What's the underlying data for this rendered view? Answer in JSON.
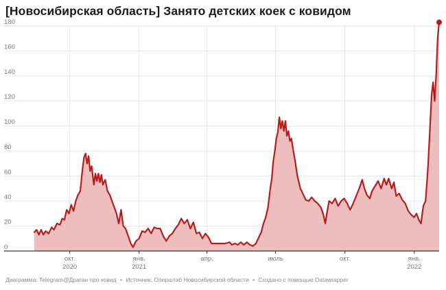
{
  "title": "[Новосибирская область] Занято детских коек с ковидом",
  "footer": {
    "chart_credit": "Диаграмма: Telegram@Драган про ковид",
    "source": "Источник: Оперштаб Новосибирской области",
    "tool": "Создано с помощью Datawrapper",
    "separator": "•"
  },
  "colors": {
    "line": "#b71c1c",
    "area": "#eebdbd",
    "grid": "#e6e6e6",
    "axis": "#333333",
    "tick_label": "#777777"
  },
  "chart_data": {
    "type": "area",
    "title": "[Новосибирская область] Занято детских коек с ковидом",
    "xlabel": "",
    "ylabel": "",
    "ylim": [
      0,
      180
    ],
    "xlim": [
      "2020-08-15",
      "2022-02-03"
    ],
    "grid": true,
    "legend": "none",
    "y_ticks": [
      0,
      20,
      40,
      60,
      80,
      100,
      120,
      140,
      160,
      180
    ],
    "x_ticks": [
      {
        "date": "2020-10-01",
        "label": "окт.",
        "year": "2020"
      },
      {
        "date": "2021-01-01",
        "label": "янв.",
        "year": "2021"
      },
      {
        "date": "2021-04-01",
        "label": "апр.",
        "year": ""
      },
      {
        "date": "2021-07-01",
        "label": "июль",
        "year": ""
      },
      {
        "date": "2021-10-01",
        "label": "окт.",
        "year": ""
      },
      {
        "date": "2022-01-01",
        "label": "янв.",
        "year": "2022"
      }
    ],
    "series": [
      {
        "values": [
          [
            "2020-08-15",
            15
          ],
          [
            "2020-08-18",
            17
          ],
          [
            "2020-08-21",
            13
          ],
          [
            "2020-08-24",
            17
          ],
          [
            "2020-08-27",
            13
          ],
          [
            "2020-08-30",
            16
          ],
          [
            "2020-09-03",
            14
          ],
          [
            "2020-09-07",
            19
          ],
          [
            "2020-09-10",
            17
          ],
          [
            "2020-09-14",
            22
          ],
          [
            "2020-09-18",
            21
          ],
          [
            "2020-09-21",
            26
          ],
          [
            "2020-09-24",
            25
          ],
          [
            "2020-09-27",
            33
          ],
          [
            "2020-09-30",
            30
          ],
          [
            "2020-10-03",
            37
          ],
          [
            "2020-10-06",
            32
          ],
          [
            "2020-10-09",
            40
          ],
          [
            "2020-10-12",
            45
          ],
          [
            "2020-10-15",
            48
          ],
          [
            "2020-10-18",
            66
          ],
          [
            "2020-10-20",
            75
          ],
          [
            "2020-10-22",
            78
          ],
          [
            "2020-10-24",
            70
          ],
          [
            "2020-10-26",
            76
          ],
          [
            "2020-10-28",
            64
          ],
          [
            "2020-10-30",
            68
          ],
          [
            "2020-11-02",
            53
          ],
          [
            "2020-11-04",
            62
          ],
          [
            "2020-11-06",
            56
          ],
          [
            "2020-11-08",
            62
          ],
          [
            "2020-11-10",
            55
          ],
          [
            "2020-11-12",
            61
          ],
          [
            "2020-11-14",
            53
          ],
          [
            "2020-11-17",
            57
          ],
          [
            "2020-11-20",
            48
          ],
          [
            "2020-11-23",
            45
          ],
          [
            "2020-11-26",
            40
          ],
          [
            "2020-11-29",
            35
          ],
          [
            "2020-12-02",
            30
          ],
          [
            "2020-12-05",
            22
          ],
          [
            "2020-12-08",
            33
          ],
          [
            "2020-12-11",
            20
          ],
          [
            "2020-12-14",
            18
          ],
          [
            "2020-12-17",
            13
          ],
          [
            "2020-12-21",
            6
          ],
          [
            "2020-12-24",
            3
          ],
          [
            "2020-12-28",
            8
          ],
          [
            "2021-01-01",
            10
          ],
          [
            "2021-01-05",
            16
          ],
          [
            "2021-01-09",
            15
          ],
          [
            "2021-01-13",
            18
          ],
          [
            "2021-01-17",
            14
          ],
          [
            "2021-01-21",
            19
          ],
          [
            "2021-01-25",
            18
          ],
          [
            "2021-01-29",
            18
          ],
          [
            "2021-02-02",
            12
          ],
          [
            "2021-02-06",
            8
          ],
          [
            "2021-02-10",
            12
          ],
          [
            "2021-02-14",
            14
          ],
          [
            "2021-02-18",
            18
          ],
          [
            "2021-02-22",
            21
          ],
          [
            "2021-02-26",
            26
          ],
          [
            "2021-03-02",
            22
          ],
          [
            "2021-03-06",
            25
          ],
          [
            "2021-03-10",
            18
          ],
          [
            "2021-03-14",
            23
          ],
          [
            "2021-03-18",
            14
          ],
          [
            "2021-03-22",
            15
          ],
          [
            "2021-03-26",
            10
          ],
          [
            "2021-03-30",
            14
          ],
          [
            "2021-04-03",
            11
          ],
          [
            "2021-04-07",
            6
          ],
          [
            "2021-04-15",
            6
          ],
          [
            "2021-04-25",
            6
          ],
          [
            "2021-05-01",
            7
          ],
          [
            "2021-05-04",
            5
          ],
          [
            "2021-05-08",
            6
          ],
          [
            "2021-05-12",
            5
          ],
          [
            "2021-05-16",
            7
          ],
          [
            "2021-05-20",
            5
          ],
          [
            "2021-05-24",
            7
          ],
          [
            "2021-05-28",
            5
          ],
          [
            "2021-06-01",
            4
          ],
          [
            "2021-06-05",
            6
          ],
          [
            "2021-06-08",
            10
          ],
          [
            "2021-06-12",
            15
          ],
          [
            "2021-06-15",
            22
          ],
          [
            "2021-06-18",
            27
          ],
          [
            "2021-06-21",
            35
          ],
          [
            "2021-06-24",
            50
          ],
          [
            "2021-06-26",
            58
          ],
          [
            "2021-06-28",
            72
          ],
          [
            "2021-06-30",
            80
          ],
          [
            "2021-07-02",
            90
          ],
          [
            "2021-07-04",
            95
          ],
          [
            "2021-07-06",
            107
          ],
          [
            "2021-07-08",
            98
          ],
          [
            "2021-07-10",
            104
          ],
          [
            "2021-07-12",
            96
          ],
          [
            "2021-07-14",
            104
          ],
          [
            "2021-07-16",
            92
          ],
          [
            "2021-07-18",
            96
          ],
          [
            "2021-07-20",
            88
          ],
          [
            "2021-07-22",
            90
          ],
          [
            "2021-07-24",
            82
          ],
          [
            "2021-07-27",
            72
          ],
          [
            "2021-07-30",
            60
          ],
          [
            "2021-08-03",
            50
          ],
          [
            "2021-08-07",
            45
          ],
          [
            "2021-08-10",
            41
          ],
          [
            "2021-08-14",
            40
          ],
          [
            "2021-08-18",
            43
          ],
          [
            "2021-08-22",
            40
          ],
          [
            "2021-08-26",
            38
          ],
          [
            "2021-08-30",
            35
          ],
          [
            "2021-09-02",
            30
          ],
          [
            "2021-09-05",
            22
          ],
          [
            "2021-09-07",
            30
          ],
          [
            "2021-09-10",
            40
          ],
          [
            "2021-09-14",
            38
          ],
          [
            "2021-09-18",
            42
          ],
          [
            "2021-09-22",
            36
          ],
          [
            "2021-09-26",
            40
          ],
          [
            "2021-09-30",
            42
          ],
          [
            "2021-10-04",
            38
          ],
          [
            "2021-10-08",
            33
          ],
          [
            "2021-10-12",
            38
          ],
          [
            "2021-10-16",
            44
          ],
          [
            "2021-10-20",
            50
          ],
          [
            "2021-10-24",
            57
          ],
          [
            "2021-10-27",
            50
          ],
          [
            "2021-10-30",
            45
          ],
          [
            "2021-11-03",
            42
          ],
          [
            "2021-11-06",
            48
          ],
          [
            "2021-11-10",
            52
          ],
          [
            "2021-11-14",
            56
          ],
          [
            "2021-11-18",
            50
          ],
          [
            "2021-11-22",
            58
          ],
          [
            "2021-11-25",
            53
          ],
          [
            "2021-11-28",
            58
          ],
          [
            "2021-12-02",
            50
          ],
          [
            "2021-12-05",
            55
          ],
          [
            "2021-12-08",
            44
          ],
          [
            "2021-12-12",
            46
          ],
          [
            "2021-12-16",
            41
          ],
          [
            "2021-12-20",
            38
          ],
          [
            "2021-12-24",
            32
          ],
          [
            "2021-12-28",
            29
          ],
          [
            "2022-01-01",
            27
          ],
          [
            "2022-01-04",
            30
          ],
          [
            "2022-01-07",
            25
          ],
          [
            "2022-01-10",
            22
          ],
          [
            "2022-01-13",
            36
          ],
          [
            "2022-01-16",
            40
          ],
          [
            "2022-01-19",
            65
          ],
          [
            "2022-01-22",
            100
          ],
          [
            "2022-01-24",
            125
          ],
          [
            "2022-01-26",
            135
          ],
          [
            "2022-01-28",
            120
          ],
          [
            "2022-01-30",
            140
          ],
          [
            "2022-02-01",
            170
          ],
          [
            "2022-02-03",
            183
          ]
        ]
      }
    ]
  }
}
